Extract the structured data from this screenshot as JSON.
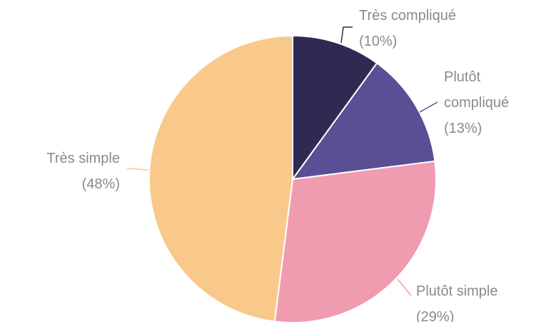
{
  "chart_data": {
    "type": "pie",
    "categories": [
      "Très compliqué",
      "Plutôt compliqué",
      "Plutôt simple",
      "Très simple"
    ],
    "values": [
      10,
      13,
      29,
      48
    ],
    "value_labels": [
      "(10%)",
      "(13%)",
      "(29%)",
      "(48%)"
    ],
    "colors": [
      "#302a52",
      "#5a4e94",
      "#f09bb0",
      "#f8c98a"
    ]
  }
}
